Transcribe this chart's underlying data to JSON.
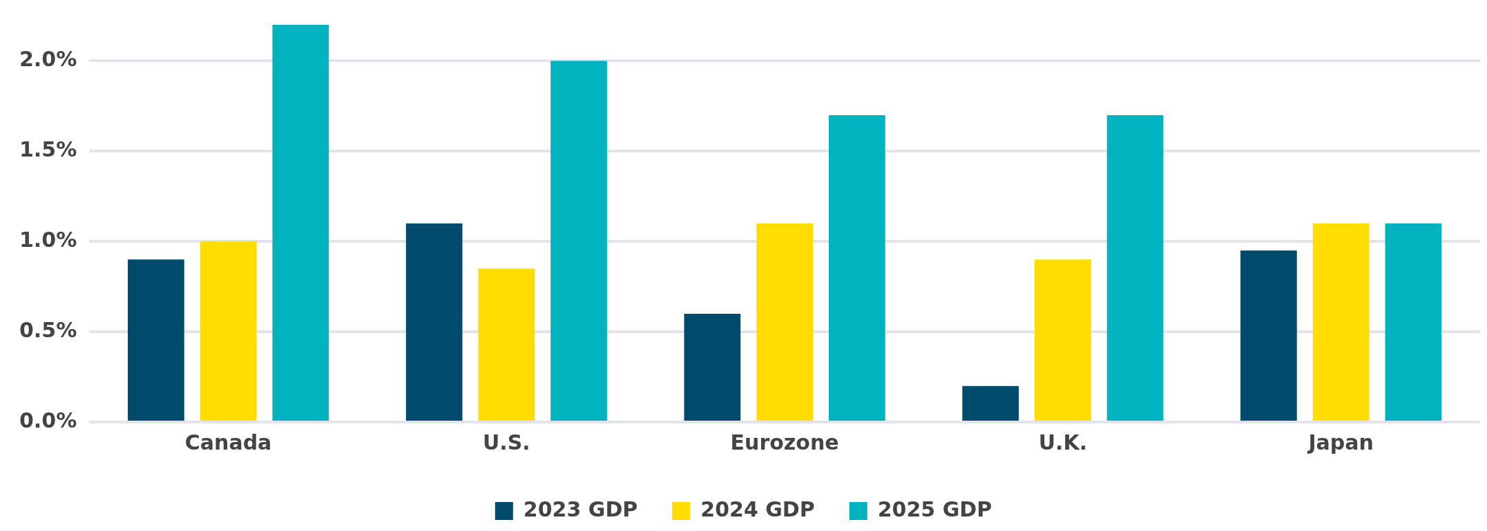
{
  "chart_data": {
    "type": "bar",
    "categories": [
      "Canada",
      "U.S.",
      "Eurozone",
      "U.K.",
      "Japan"
    ],
    "series": [
      {
        "name": "2023 GDP",
        "color": "#004a6b",
        "values": [
          0.9,
          1.1,
          0.6,
          0.2,
          0.95
        ]
      },
      {
        "name": "2024 GDP",
        "color": "#ffdd00",
        "values": [
          1.0,
          0.85,
          1.1,
          0.9,
          1.1
        ]
      },
      {
        "name": "2025 GDP",
        "color": "#00b3be",
        "values": [
          2.2,
          2.0,
          1.7,
          1.7,
          1.1
        ]
      }
    ],
    "ylim": [
      0,
      2.2
    ],
    "yticks": [
      {
        "value": 0,
        "label": "0.0%"
      },
      {
        "value": 0.5,
        "label": "0.5%"
      },
      {
        "value": 1,
        "label": "1.0%"
      },
      {
        "value": 1.5,
        "label": "1.5%"
      },
      {
        "value": 2,
        "label": "2.0%"
      }
    ],
    "grid": "y",
    "legend": "bottom"
  }
}
